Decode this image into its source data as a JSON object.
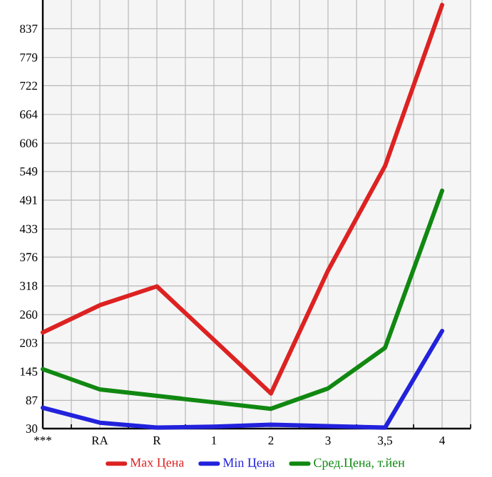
{
  "chart_data": {
    "type": "line",
    "categories": [
      "***",
      "RA",
      "R",
      "1",
      "2",
      "3",
      "3,5",
      "4"
    ],
    "series": [
      {
        "name": "Max Цена",
        "color": "#dd2222",
        "values": [
          224,
          279,
          317,
          209,
          101,
          349,
          560,
          885
        ]
      },
      {
        "name": "Min Цена",
        "color": "#2222dd",
        "values": [
          72,
          42,
          32,
          34,
          38,
          35,
          32,
          227
        ]
      },
      {
        "name": "Сред.Цена, т.йен",
        "color": "#118811",
        "values": [
          150,
          109,
          96,
          83,
          70,
          111,
          193,
          510
        ]
      }
    ],
    "ylim": [
      30,
      895
    ],
    "yticks": [
      30,
      87,
      145,
      203,
      260,
      318,
      376,
      433,
      491,
      549,
      606,
      664,
      722,
      779,
      837
    ],
    "grid": true,
    "legend": "bottom",
    "marker": "none",
    "line_style": "solid"
  }
}
